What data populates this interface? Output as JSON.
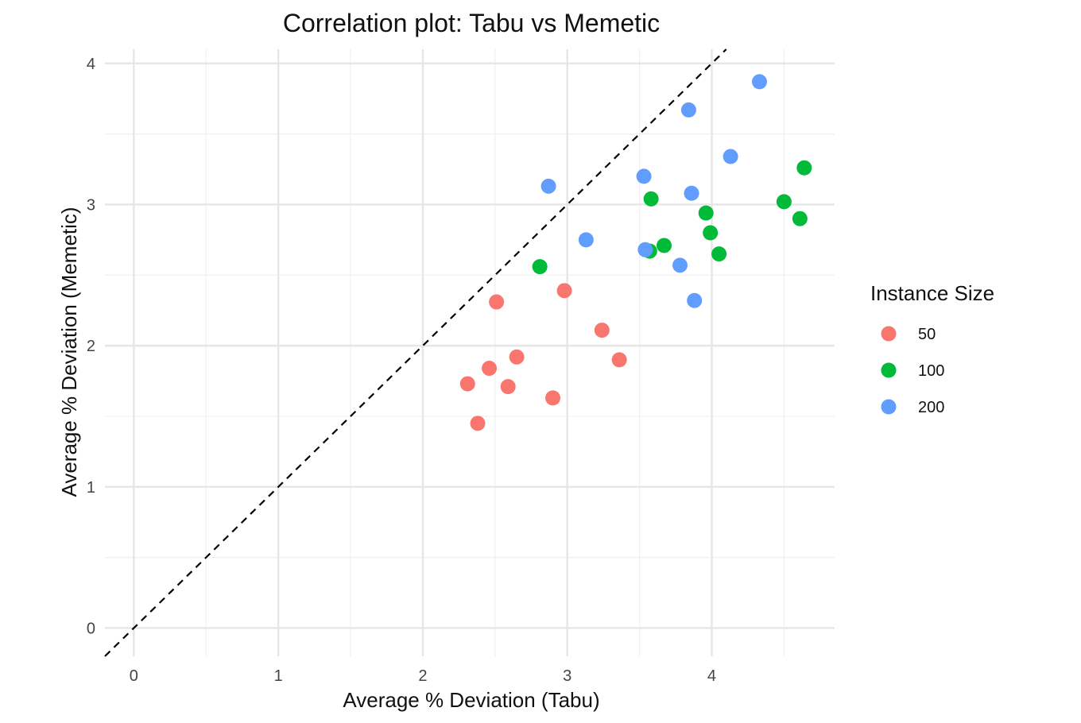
{
  "chart_data": {
    "type": "scatter",
    "title": "Correlation plot: Tabu vs Memetic",
    "xlabel": "Average % Deviation (Tabu)",
    "ylabel": "Average % Deviation (Memetic)",
    "xlim": [
      -0.2,
      4.85
    ],
    "ylim": [
      -0.2,
      4.1
    ],
    "x_ticks": [
      "0",
      "1",
      "2",
      "3",
      "4"
    ],
    "y_ticks": [
      "0",
      "1",
      "2",
      "3",
      "4"
    ],
    "grid": true,
    "reference_line": {
      "type": "y = x",
      "style": "dashed",
      "color": "#000000"
    },
    "legend": {
      "title": "Instance Size",
      "placement": "right",
      "entries": [
        {
          "label": "50",
          "color": "#F8766D"
        },
        {
          "label": "100",
          "color": "#00BA38"
        },
        {
          "label": "200",
          "color": "#619CFF"
        }
      ]
    },
    "series": [
      {
        "name": "50",
        "color": "#F8766D",
        "points": [
          {
            "x": 2.51,
            "y": 2.31
          },
          {
            "x": 2.98,
            "y": 2.39
          },
          {
            "x": 3.24,
            "y": 2.11
          },
          {
            "x": 3.36,
            "y": 1.9
          },
          {
            "x": 2.65,
            "y": 1.92
          },
          {
            "x": 2.46,
            "y": 1.84
          },
          {
            "x": 2.31,
            "y": 1.73
          },
          {
            "x": 2.59,
            "y": 1.71
          },
          {
            "x": 2.9,
            "y": 1.63
          },
          {
            "x": 2.38,
            "y": 1.45
          }
        ]
      },
      {
        "name": "100",
        "color": "#00BA38",
        "points": [
          {
            "x": 2.81,
            "y": 2.56
          },
          {
            "x": 3.58,
            "y": 3.04
          },
          {
            "x": 3.96,
            "y": 2.94
          },
          {
            "x": 3.99,
            "y": 2.8
          },
          {
            "x": 3.67,
            "y": 2.71
          },
          {
            "x": 3.57,
            "y": 2.67
          },
          {
            "x": 4.05,
            "y": 2.65
          },
          {
            "x": 4.5,
            "y": 3.02
          },
          {
            "x": 4.61,
            "y": 2.9
          },
          {
            "x": 4.64,
            "y": 3.26
          }
        ]
      },
      {
        "name": "200",
        "color": "#619CFF",
        "points": [
          {
            "x": 2.87,
            "y": 3.13
          },
          {
            "x": 3.13,
            "y": 2.75
          },
          {
            "x": 3.53,
            "y": 3.2
          },
          {
            "x": 3.54,
            "y": 2.68
          },
          {
            "x": 3.84,
            "y": 3.67
          },
          {
            "x": 3.86,
            "y": 3.08
          },
          {
            "x": 3.78,
            "y": 2.57
          },
          {
            "x": 3.88,
            "y": 2.32
          },
          {
            "x": 4.13,
            "y": 3.34
          },
          {
            "x": 4.33,
            "y": 3.87
          }
        ]
      }
    ]
  }
}
